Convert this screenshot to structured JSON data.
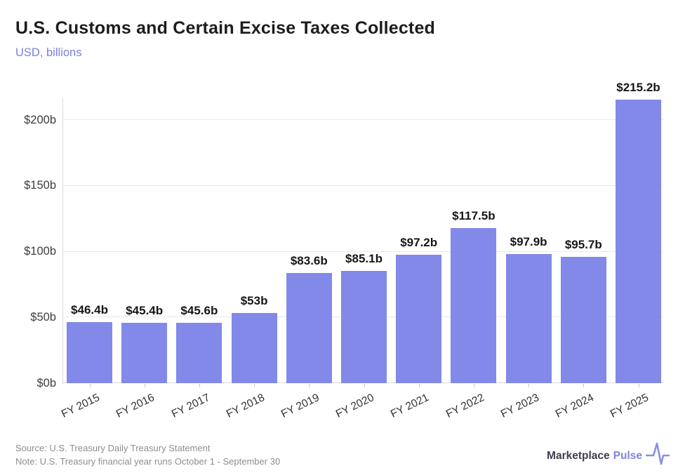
{
  "header": {
    "title": "U.S. Customs and Certain Excise Taxes Collected",
    "subtitle": "USD, billions"
  },
  "chart_data": {
    "type": "bar",
    "title": "U.S. Customs and Certain Excise Taxes Collected",
    "subtitle": "USD, billions",
    "categories": [
      "FY 2015",
      "FY 2016",
      "FY 2017",
      "FY 2018",
      "FY 2019",
      "FY 2020",
      "FY 2021",
      "FY 2022",
      "FY 2023",
      "FY 2024",
      "FY 2025"
    ],
    "values": [
      46.4,
      45.4,
      45.6,
      53,
      83.6,
      85.1,
      97.2,
      117.5,
      97.9,
      95.7,
      215.2
    ],
    "value_labels": [
      "$46.4b",
      "$45.4b",
      "$45.6b",
      "$53b",
      "$83.6b",
      "$85.1b",
      "$97.2b",
      "$117.5b",
      "$97.9b",
      "$95.7b",
      "$215.2b"
    ],
    "yticks": [
      0,
      50,
      100,
      150,
      200
    ],
    "ytick_labels": [
      "$0b",
      "$50b",
      "$100b",
      "$150b",
      "$200b"
    ],
    "ylim": [
      0,
      220
    ],
    "grid": true,
    "legend": "none",
    "bar_color": "#8289e8"
  },
  "footer": {
    "source": "Source: U.S. Treasury Daily Treasury Statement",
    "note": "Note: U.S. Treasury financial year runs October 1 - September 30",
    "brand": {
      "name": "Marketplace",
      "accent": "Pulse"
    }
  },
  "colors": {
    "bar": "#8289e8",
    "accent_text": "#7b80e0",
    "title_text": "#1d1d1f",
    "gridline": "#e9e9e9",
    "footer_text": "#8e8e8e"
  }
}
